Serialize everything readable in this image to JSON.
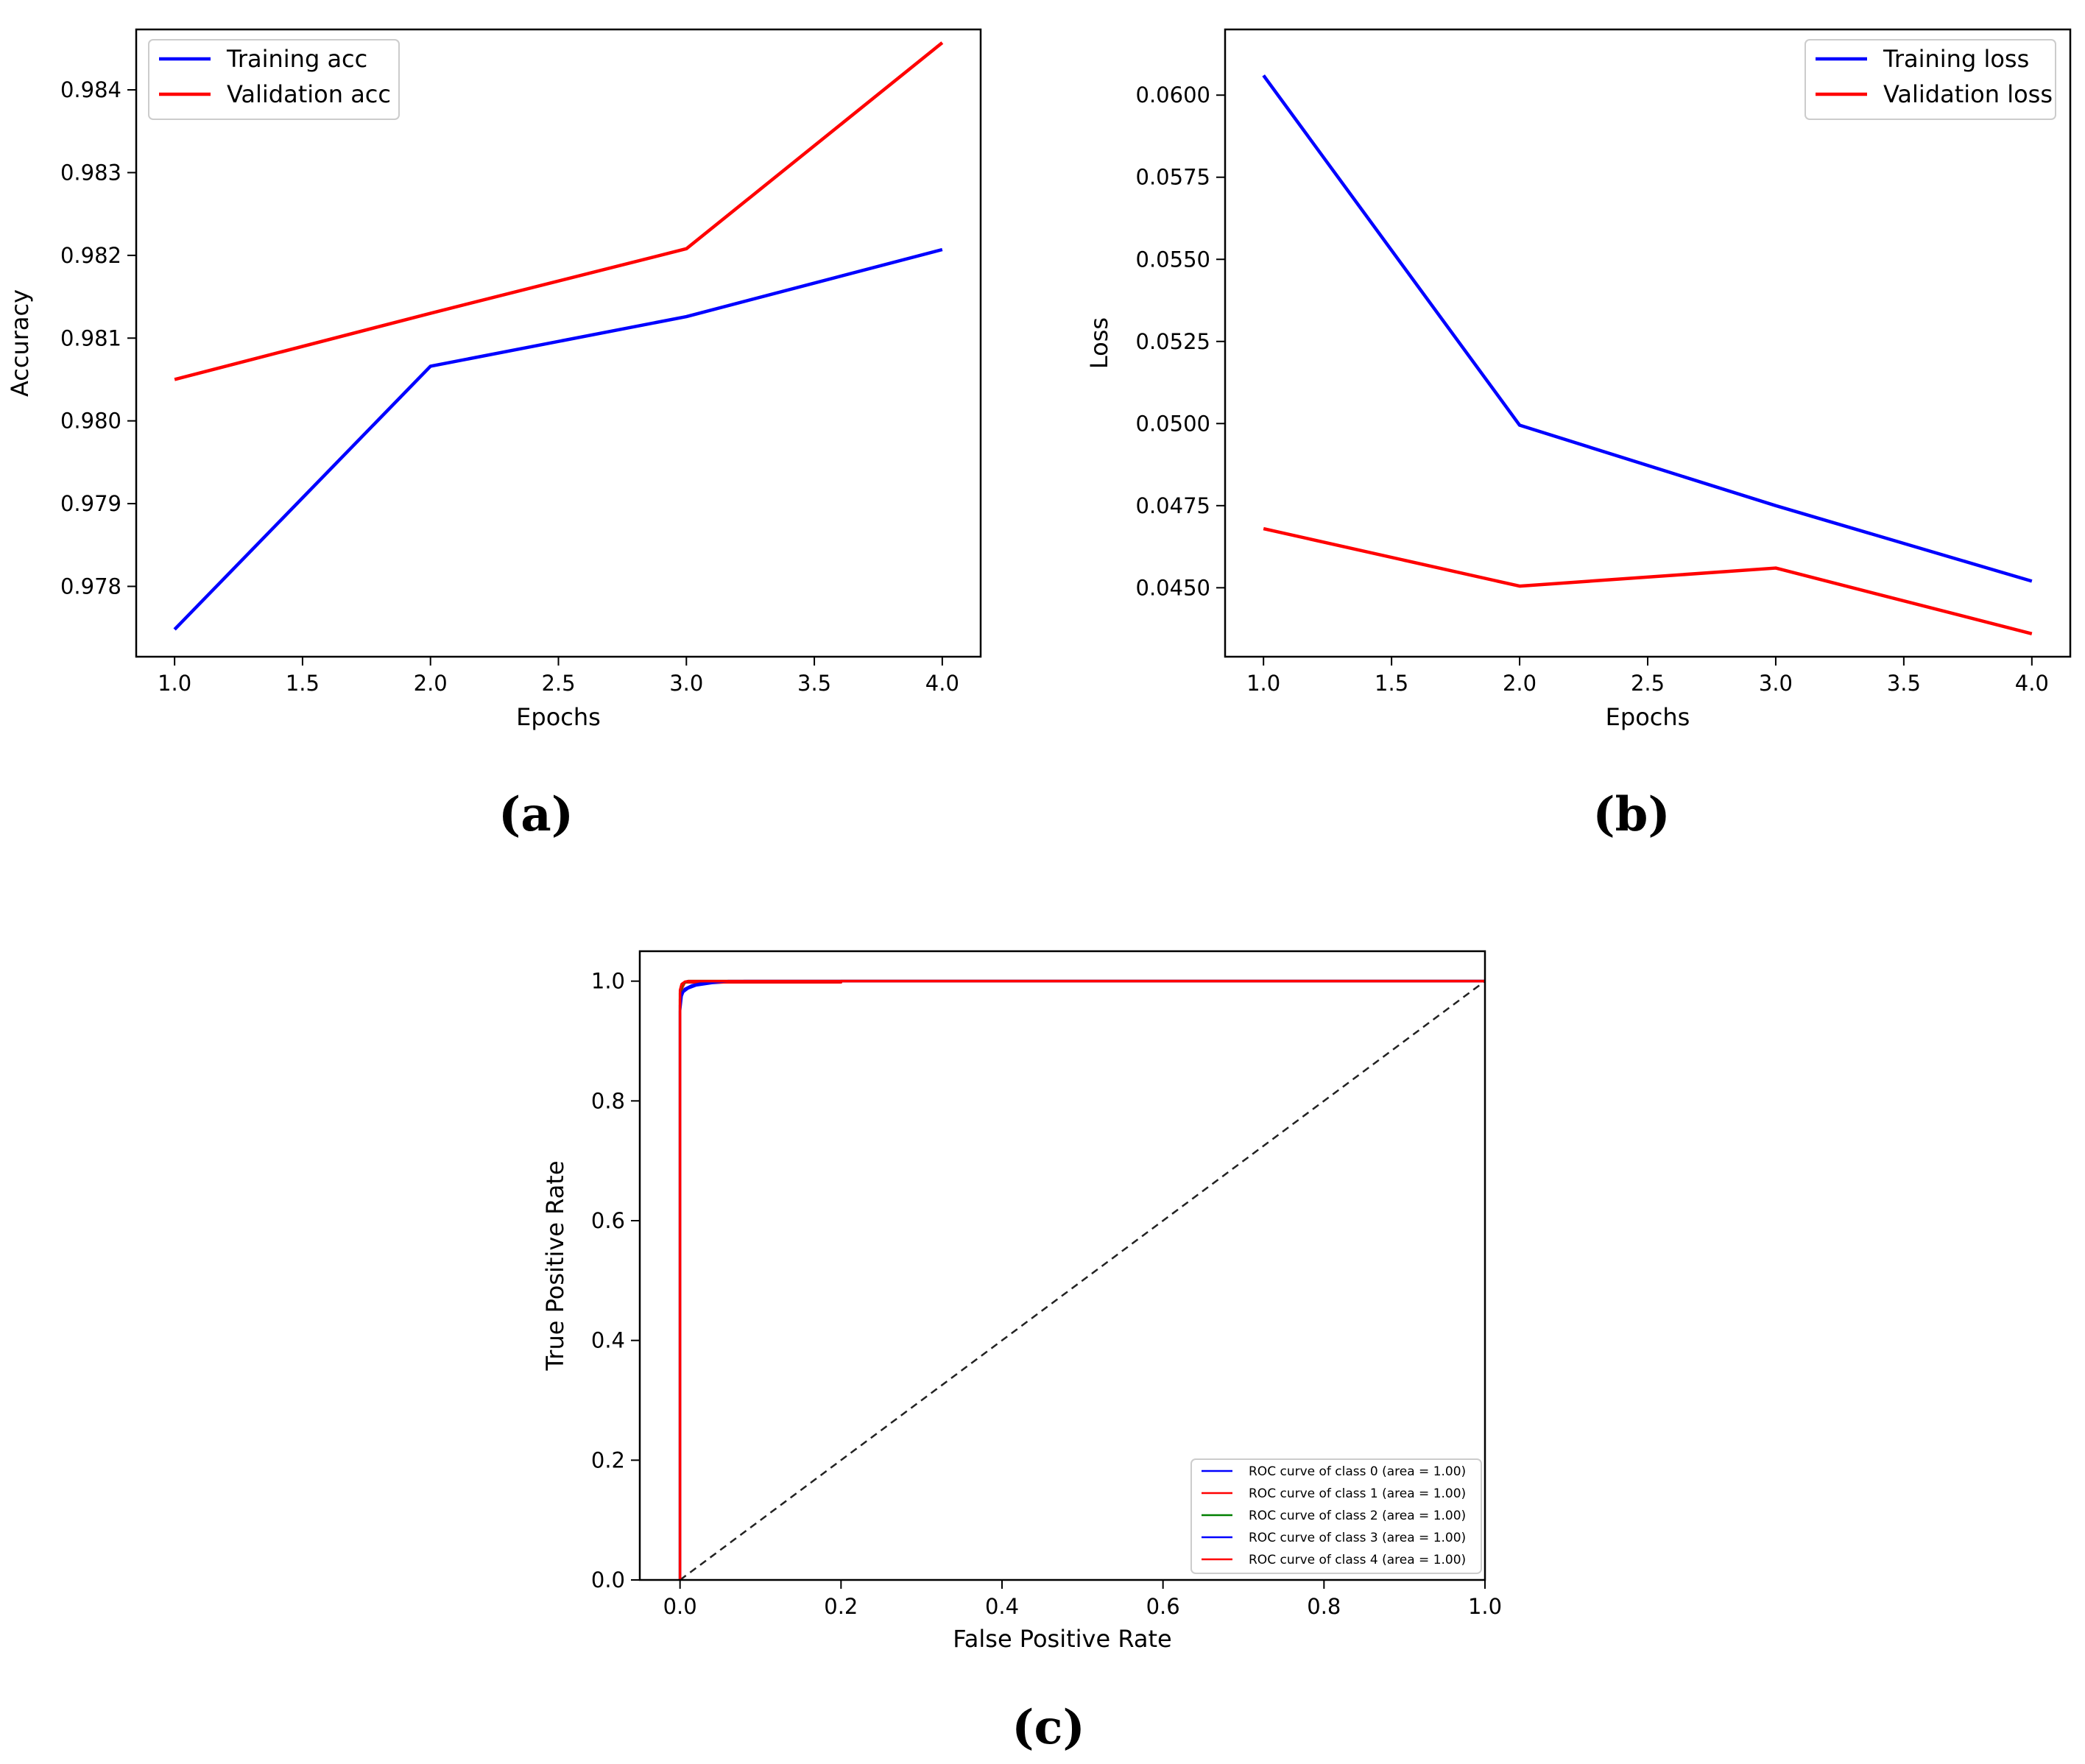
{
  "chart_data": [
    {
      "type": "line",
      "panel_label": "(a)",
      "xlabel": "Epochs",
      "ylabel": "Accuracy",
      "xlim": [
        0.85,
        4.15
      ],
      "ylim": [
        0.97715,
        0.98473
      ],
      "xticks": [
        1.0,
        1.5,
        2.0,
        2.5,
        3.0,
        3.5,
        4.0
      ],
      "xtick_labels": [
        "1.0",
        "1.5",
        "2.0",
        "2.5",
        "3.0",
        "3.5",
        "4.0"
      ],
      "yticks": [
        0.978,
        0.979,
        0.98,
        0.981,
        0.982,
        0.983,
        0.984
      ],
      "ytick_labels": [
        "0.978",
        "0.979",
        "0.980",
        "0.981",
        "0.982",
        "0.983",
        "0.984"
      ],
      "legend_position": "upper left",
      "x": [
        1,
        2,
        3,
        4
      ],
      "series": [
        {
          "name": "Training acc",
          "color": "#0000ff",
          "values": [
            0.97748,
            0.98066,
            0.98126,
            0.98207
          ]
        },
        {
          "name": "Validation acc",
          "color": "#ff0000",
          "values": [
            0.9805,
            0.9813,
            0.98208,
            0.98457
          ]
        }
      ]
    },
    {
      "type": "line",
      "panel_label": "(b)",
      "xlabel": "Epochs",
      "ylabel": "Loss",
      "xlim": [
        0.85,
        4.15
      ],
      "ylim": [
        0.0429,
        0.062
      ],
      "xticks": [
        1.0,
        1.5,
        2.0,
        2.5,
        3.0,
        3.5,
        4.0
      ],
      "xtick_labels": [
        "1.0",
        "1.5",
        "2.0",
        "2.5",
        "3.0",
        "3.5",
        "4.0"
      ],
      "yticks": [
        0.045,
        0.0475,
        0.05,
        0.0525,
        0.055,
        0.0575,
        0.06
      ],
      "ytick_labels": [
        "0.0450",
        "0.0475",
        "0.0500",
        "0.0525",
        "0.0550",
        "0.0575",
        "0.0600"
      ],
      "legend_position": "upper right",
      "x": [
        1,
        2,
        3,
        4
      ],
      "series": [
        {
          "name": "Training loss",
          "color": "#0000ff",
          "values": [
            0.0606,
            0.04995,
            0.0475,
            0.0452
          ]
        },
        {
          "name": "Validation loss",
          "color": "#ff0000",
          "values": [
            0.0468,
            0.04505,
            0.0456,
            0.0436
          ]
        }
      ]
    },
    {
      "type": "line",
      "panel_label": "(c)",
      "xlabel": "False Positive Rate",
      "ylabel": "True Positive Rate",
      "xlim": [
        -0.05,
        1.0
      ],
      "ylim": [
        0.0,
        1.05
      ],
      "xticks": [
        0.0,
        0.2,
        0.4,
        0.6,
        0.8,
        1.0
      ],
      "xtick_labels": [
        "0.0",
        "0.2",
        "0.4",
        "0.6",
        "0.8",
        "1.0"
      ],
      "yticks": [
        0.0,
        0.2,
        0.4,
        0.6,
        0.8,
        1.0
      ],
      "ytick_labels": [
        "0.0",
        "0.2",
        "0.4",
        "0.6",
        "0.8",
        "1.0"
      ],
      "legend_position": "lower right",
      "series": [
        {
          "name": "ROC curve of class 0 (area = 1.00)",
          "color": "#0000ff",
          "x": [
            0,
            0,
            0.002,
            0.004,
            0.01,
            0.02,
            0.04,
            0.08,
            1.0
          ],
          "y": [
            0,
            0.95,
            0.975,
            0.982,
            0.988,
            0.993,
            0.997,
            1.0,
            1.0
          ]
        },
        {
          "name": "ROC curve of class 1 (area = 1.00)",
          "color": "#ff0000",
          "x": [
            0,
            0,
            0.003,
            0.006,
            0.2,
            0.2,
            1.0
          ],
          "y": [
            0,
            0.97,
            0.99,
            0.998,
            0.998,
            1.0,
            1.0
          ]
        },
        {
          "name": "ROC curve of class 2 (area = 1.00)",
          "color": "#008000",
          "x": [
            0,
            0,
            0.003,
            0.01,
            1.0
          ],
          "y": [
            0,
            0.98,
            0.996,
            1.0,
            1.0
          ]
        },
        {
          "name": "ROC curve of class 3 (area = 1.00)",
          "color": "#0000ff",
          "x": [
            0,
            0,
            0.002,
            0.006,
            0.015,
            0.03,
            0.06,
            1.0
          ],
          "y": [
            0,
            0.96,
            0.978,
            0.987,
            0.993,
            0.997,
            1.0,
            1.0
          ]
        },
        {
          "name": "ROC curve of class 4 (area = 1.00)",
          "color": "#ff0000",
          "x": [
            0,
            0,
            0.002,
            0.006,
            0.01,
            1.0
          ],
          "y": [
            0,
            0.985,
            0.995,
            0.999,
            1.0,
            1.0
          ]
        }
      ],
      "diagonal": {
        "x": [
          0,
          1
        ],
        "y": [
          0,
          1
        ],
        "color": "#222222",
        "style": "dashed"
      }
    }
  ]
}
